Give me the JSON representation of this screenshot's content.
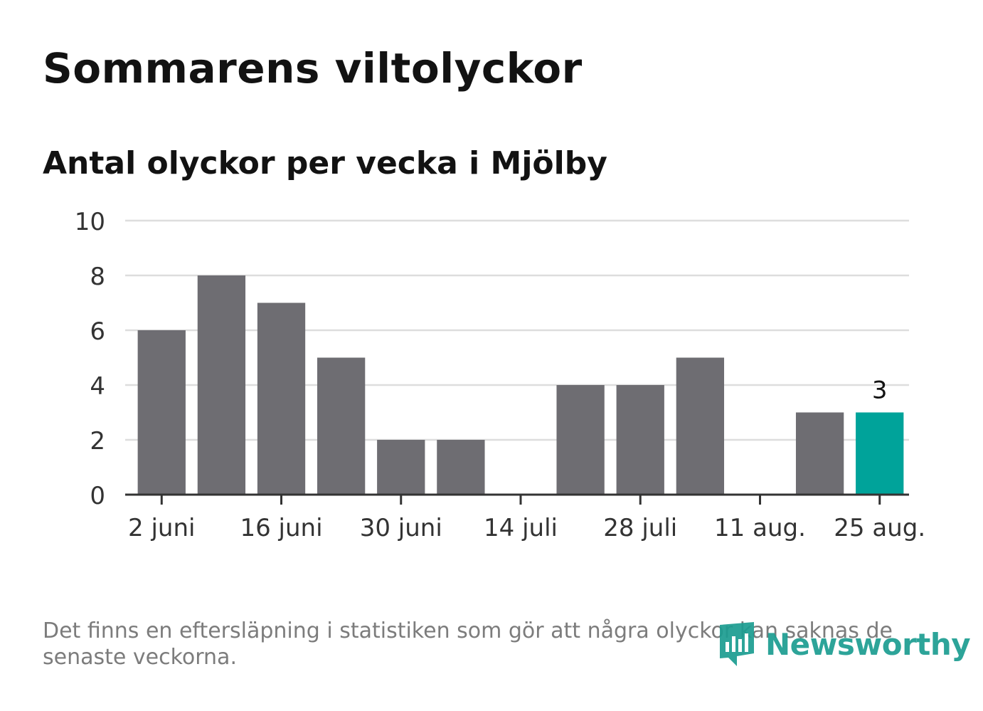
{
  "title": "Sommarens viltolyckor",
  "subtitle": "Antal olyckor per vecka i Mjölby",
  "note": "Det finns en eftersläpning i statistiken som gör att några olyckor kan saknas de senaste veckorna.",
  "brand": {
    "name": "Newsworthy",
    "icon": "newsworthy-logo-icon",
    "color": "#1c9d91"
  },
  "colors": {
    "bar": "#6e6d72",
    "highlight": "#00a39a",
    "grid": "#dddddd",
    "axis": "#333333"
  },
  "chart_data": {
    "type": "bar",
    "title": "Sommarens viltolyckor",
    "subtitle": "Antal olyckor per vecka i Mjölby",
    "categories": [
      "2 juni",
      "9 juni",
      "16 juni",
      "23 juni",
      "30 juni",
      "7 juli",
      "14 juli",
      "21 juli",
      "28 juli",
      "4 aug.",
      "11 aug.",
      "18 aug.",
      "25 aug."
    ],
    "tick_labels": [
      "2 juni",
      "16 juni",
      "30 juni",
      "14 juli",
      "28 juli",
      "11 aug.",
      "25 aug."
    ],
    "values": [
      6,
      8,
      7,
      5,
      2,
      2,
      0,
      4,
      4,
      5,
      0,
      3,
      3
    ],
    "highlight_index": 12,
    "data_labels": [
      {
        "index": 12,
        "text": "3"
      }
    ],
    "y_ticks": [
      0,
      2,
      4,
      6,
      8,
      10
    ],
    "ylim": [
      0,
      10
    ],
    "grid": true,
    "legend": "none"
  }
}
